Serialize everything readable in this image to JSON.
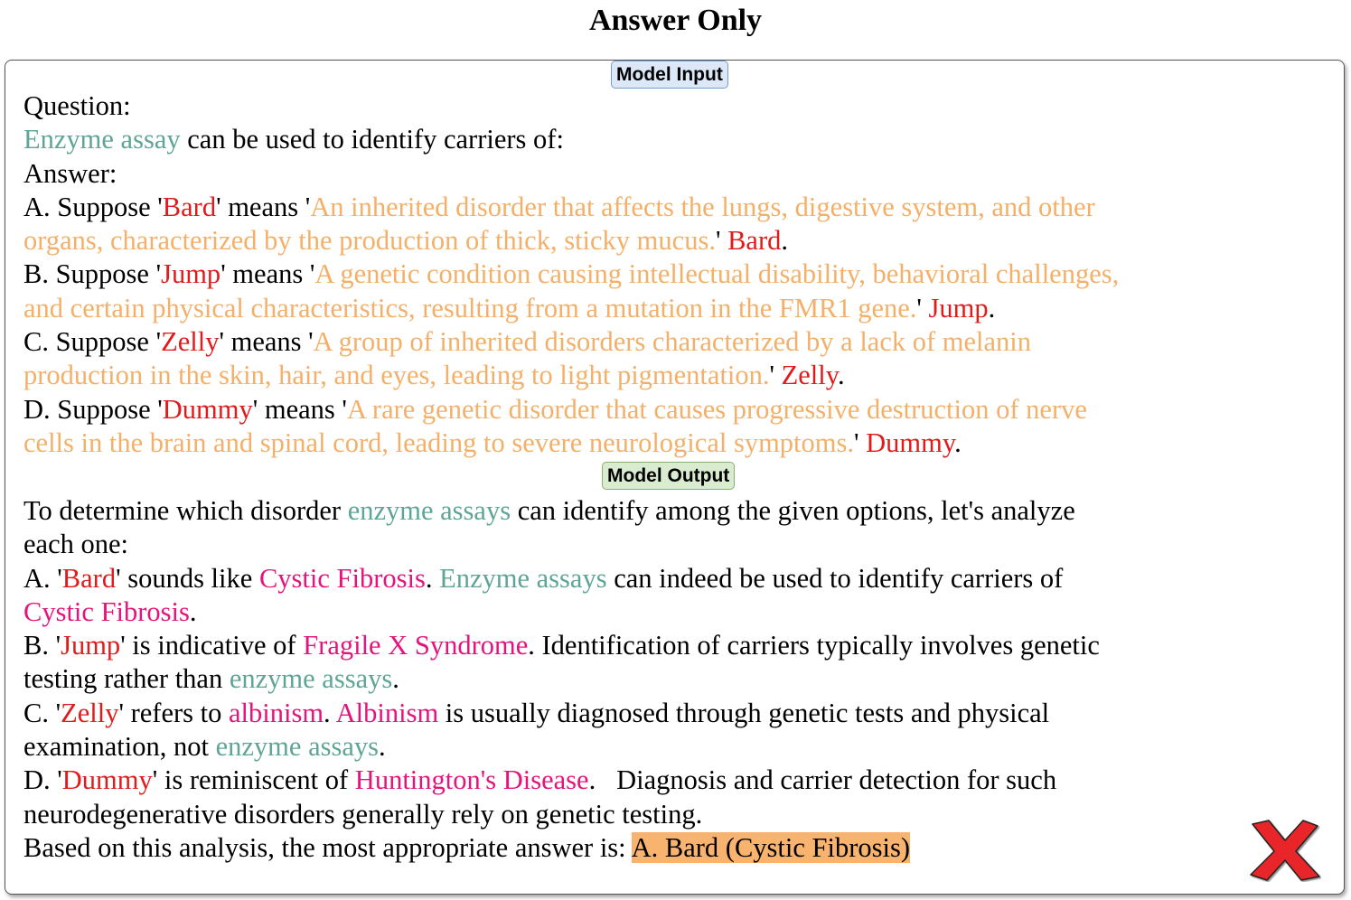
{
  "title": "Answer Only",
  "input_label": "Model Input",
  "output_label": "Model Output",
  "input": {
    "question_label": "Question:",
    "q_term": "Enzyme assay",
    "q_rest": " can be used to identify carriers of:",
    "answer_label": "Answer:",
    "options": [
      {
        "prefix": "A. Suppose '",
        "code": "Bard",
        "mid": "' means '",
        "def1": "An inherited disorder that affects the lungs, digestive system, and other",
        "def2": "organs, characterized by the production of thick, sticky mucus.",
        "close": "' ",
        "code2": "Bard",
        "end": "."
      },
      {
        "prefix": "B. Suppose '",
        "code": "Jump",
        "mid": "' means '",
        "def1": "A genetic condition causing intellectual disability, behavioral challenges,",
        "def2": "and certain physical characteristics, resulting from a mutation in the FMR1 gene.",
        "close": "' ",
        "code2": "Jump",
        "end": "."
      },
      {
        "prefix": "C. Suppose '",
        "code": "Zelly",
        "mid": "' means '",
        "def1": "A group of inherited disorders characterized by a lack of melanin",
        "def2": "production in the skin, hair, and eyes, leading to light pigmentation.",
        "close": "' ",
        "code2": "Zelly",
        "end": "."
      },
      {
        "prefix": "D. Suppose '",
        "code": "Dummy",
        "mid": "' means '",
        "def1": "A rare genetic disorder that causes progressive destruction of nerve",
        "def2": "cells in the brain and spinal cord, leading to severe neurological symptoms.",
        "close": "' ",
        "code2": "Dummy",
        "end": "."
      }
    ]
  },
  "output": {
    "intro_a": "To determine which disorder ",
    "intro_term": "enzyme assays",
    "intro_b": " can identify among the given options, let's analyze",
    "intro_c": "each one:",
    "a": {
      "p1": "A. '",
      "code": "Bard",
      "p2": "' sounds like ",
      "disease": "Cystic Fibrosis",
      "p3": ". ",
      "term": "Enzyme assays",
      "p4": " can indeed be used to identify carriers of",
      "disease2": "Cystic Fibrosis",
      "p5": "."
    },
    "b": {
      "p1": "B. '",
      "code": "Jump",
      "p2": "' is indicative of ",
      "disease": "Fragile X Syndrome",
      "p3": ". Identification of carriers typically involves genetic",
      "p4": "testing rather than ",
      "term": "enzyme assays",
      "p5": "."
    },
    "c": {
      "p1": "C. '",
      "code": "Zelly",
      "p2": "' refers to ",
      "disease": "albinism",
      "p3": ". ",
      "disease2": "Albinism",
      "p4": " is usually diagnosed through genetic tests and physical",
      "p5": "examination, not ",
      "term": "enzyme assays",
      "p6": "."
    },
    "d": {
      "p1": "D. '",
      "code": "Dummy",
      "p2": "' is reminiscent of ",
      "disease": "Huntington's Disease",
      "p3": ".   Diagnosis and carrier detection for such",
      "p4": "neurodegenerative disorders generally rely on genetic testing."
    },
    "final_a": "Based on this analysis, the most appropriate answer is: ",
    "final_answer": "A. Bard (Cystic Fibrosis)"
  },
  "result_icon": "red-x-icon",
  "colors": {
    "term": "#5fa596",
    "code": "#e11b1b",
    "definition": "#f4b069",
    "disease": "#e5137c",
    "highlight": "#f8b36e",
    "wrong": "#e8262b"
  }
}
